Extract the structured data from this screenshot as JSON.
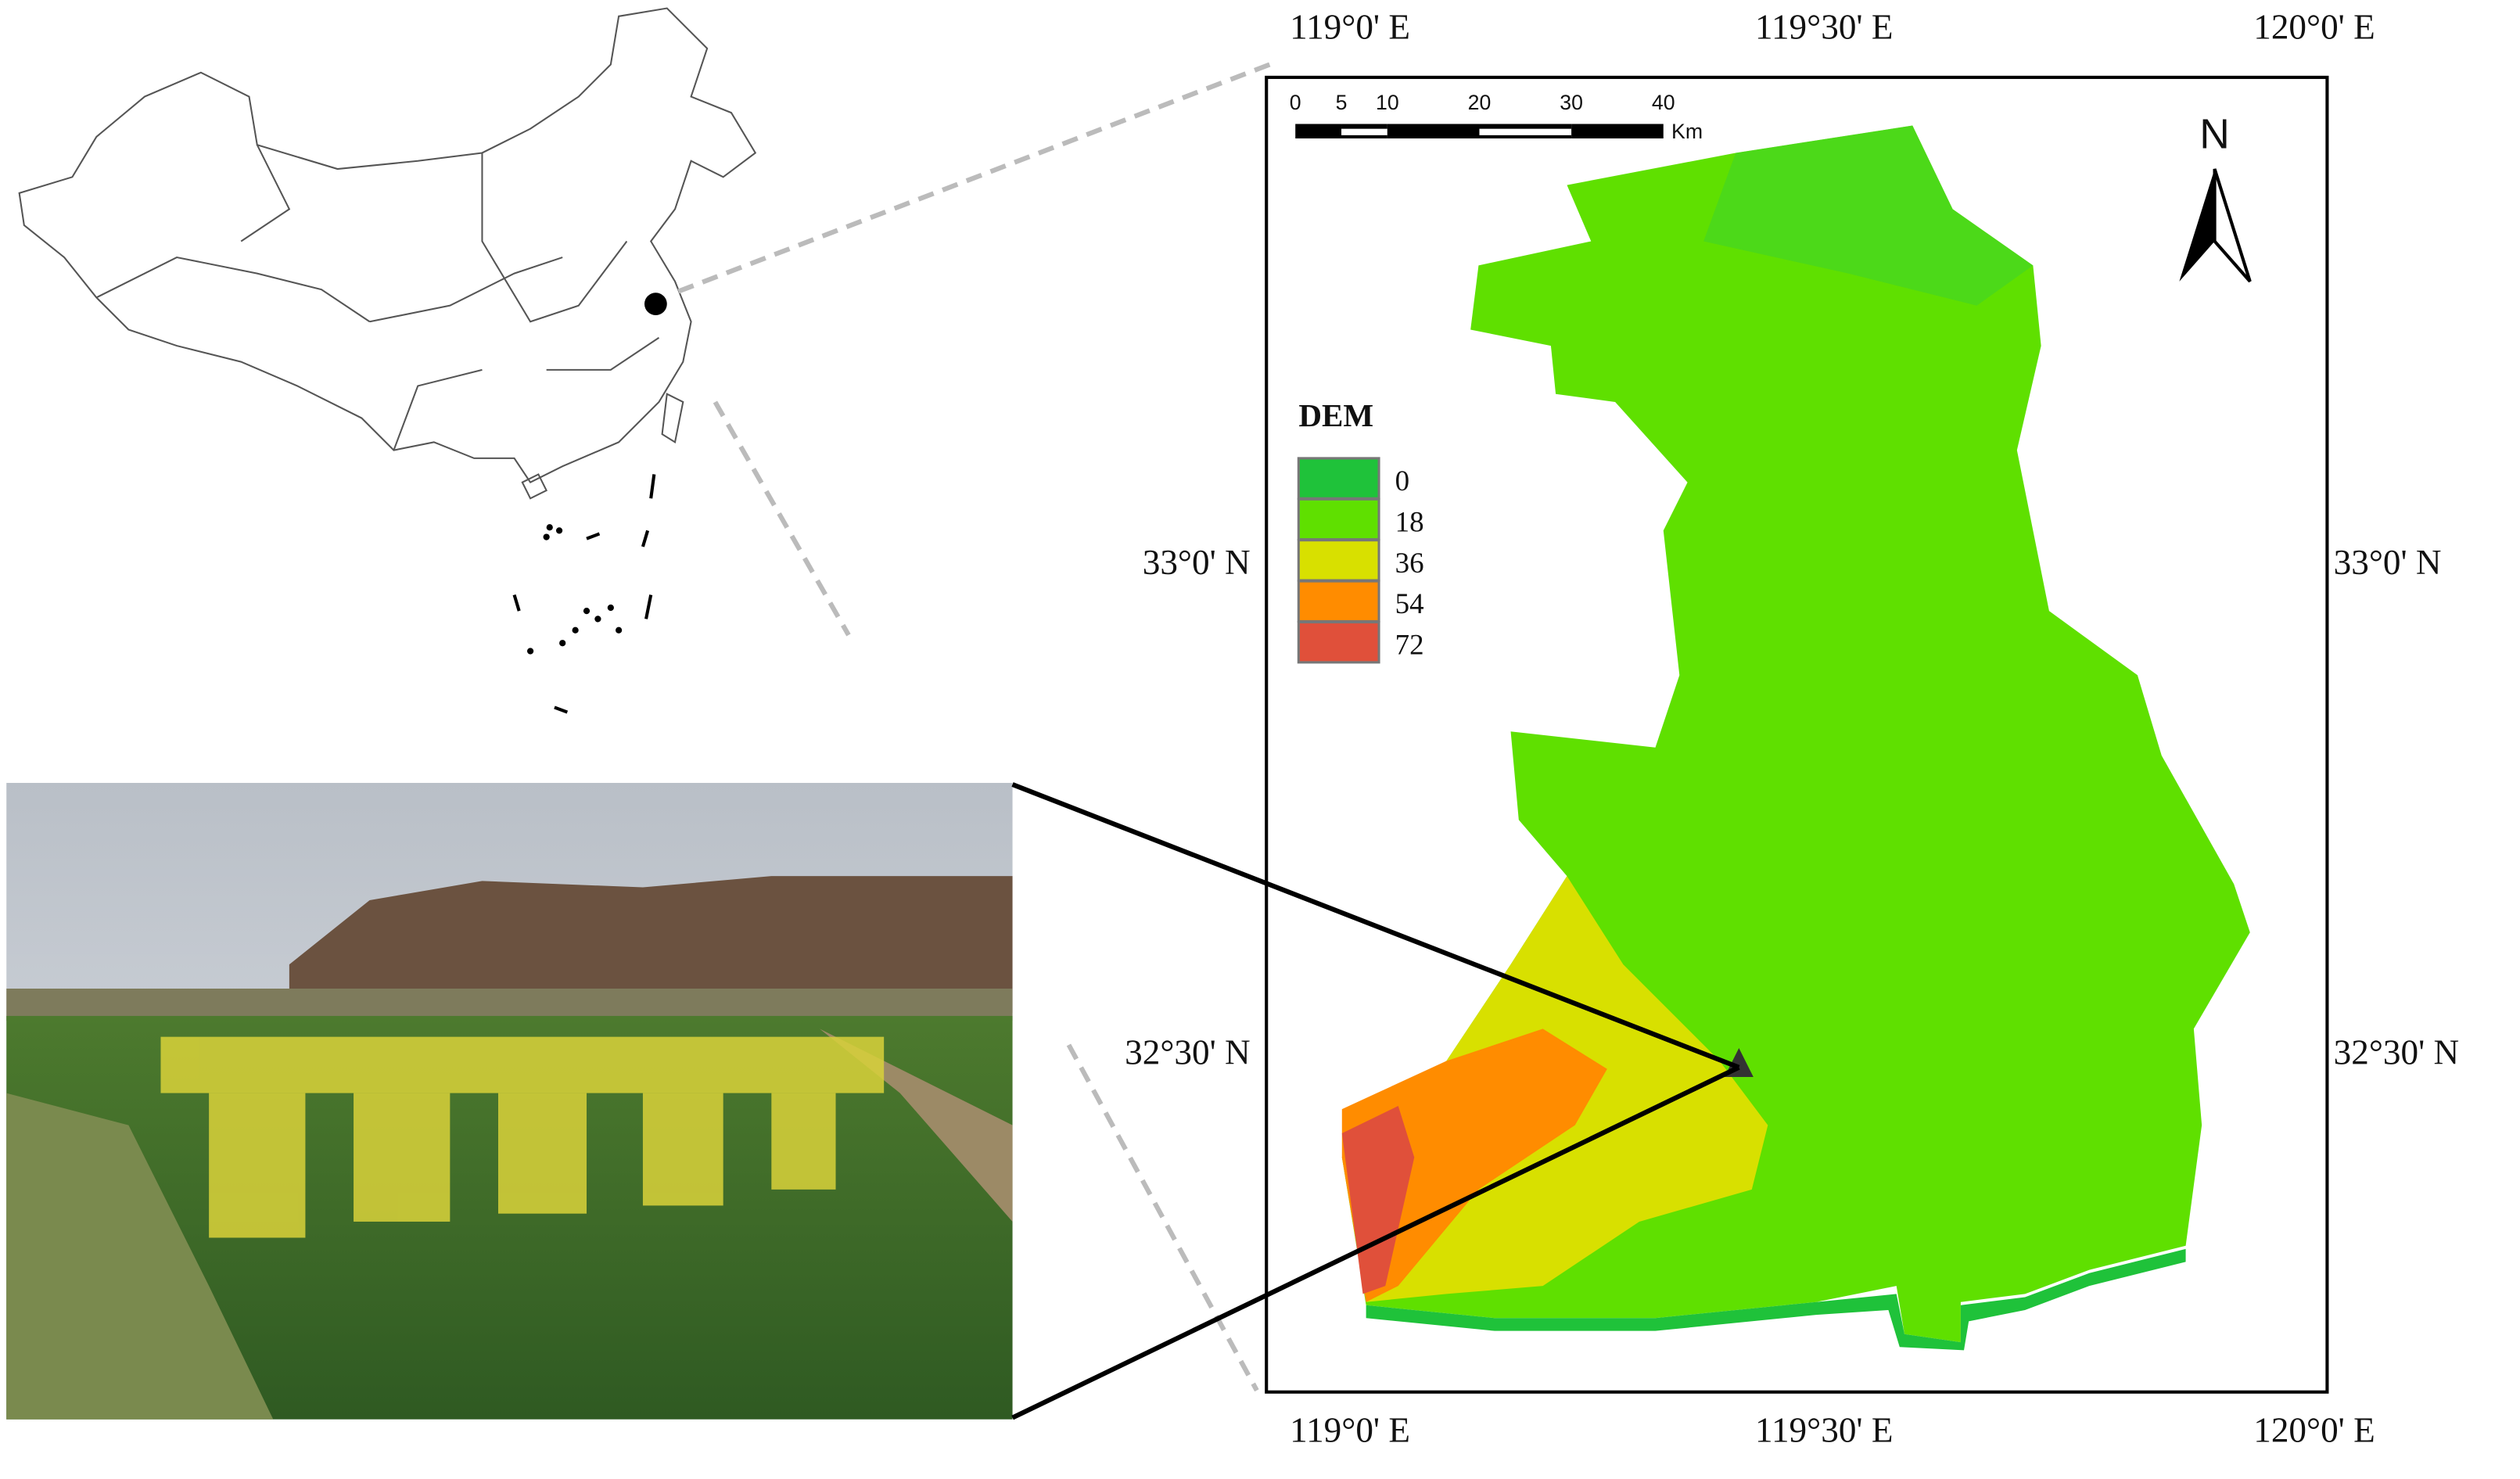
{
  "map": {
    "lon_labels": [
      "119°0' E",
      "119°30' E",
      "120°0' E"
    ],
    "lat_labels": [
      "33°0' N",
      "32°30' N"
    ],
    "scale_bar": {
      "ticks": [
        0,
        5,
        10,
        20,
        30,
        40
      ],
      "unit": "Km"
    },
    "north_arrow": "N",
    "legend": {
      "title": "DEM",
      "items": [
        {
          "label": 0,
          "color": "#1fc23a"
        },
        {
          "label": 18,
          "color": "#5fe000"
        },
        {
          "label": 36,
          "color": "#d8e000"
        },
        {
          "label": 54,
          "color": "#ff8c00"
        },
        {
          "label": 72,
          "color": "#e0503a"
        }
      ]
    }
  }
}
